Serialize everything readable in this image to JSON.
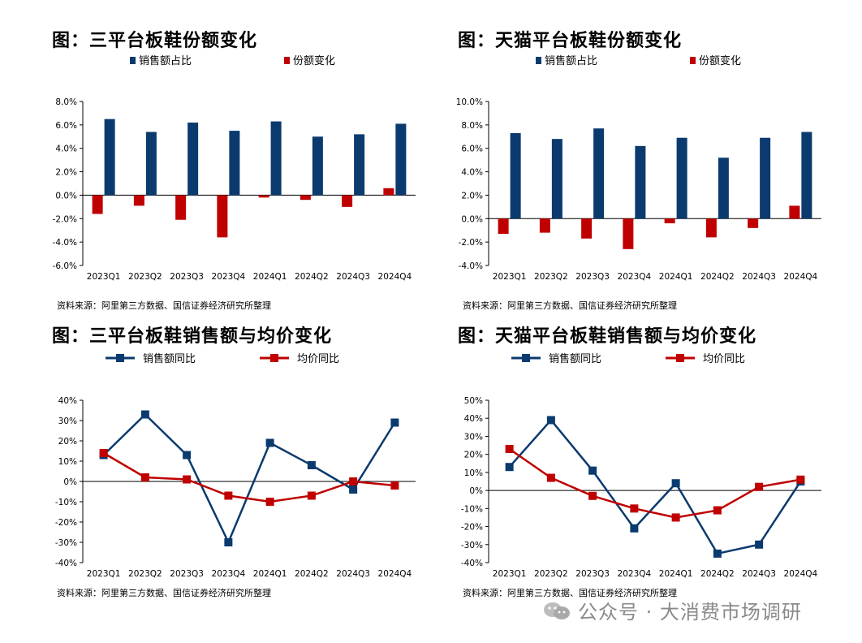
{
  "colors": {
    "navy": "#0B3A6E",
    "red": "#C00000",
    "axis": "#000000"
  },
  "watermark": {
    "text": "公众号 · 大消费市场调研",
    "icon": "wechat-icon"
  },
  "chart_data": [
    {
      "type": "bar",
      "title": "图：三平台板鞋份额变化",
      "source": "资料来源：阿里第三方数据、国信证券经济研究所整理",
      "categories": [
        "2023Q1",
        "2023Q2",
        "2023Q3",
        "2023Q4",
        "2024Q1",
        "2024Q2",
        "2024Q3",
        "2024Q4"
      ],
      "series": [
        {
          "name": "销售额占比",
          "color": "#0B3A6E",
          "values": [
            6.5,
            5.4,
            6.2,
            5.5,
            6.3,
            5.0,
            5.2,
            6.1
          ]
        },
        {
          "name": "份额变化",
          "color": "#C00000",
          "values": [
            -1.6,
            -0.9,
            -2.1,
            -3.6,
            -0.2,
            -0.4,
            -1.0,
            0.6
          ]
        }
      ],
      "yticks": [
        "8.0%",
        "6.0%",
        "4.0%",
        "2.0%",
        "0.0%",
        "-2.0%",
        "-4.0%",
        "-6.0%"
      ],
      "ylim": [
        -6,
        8
      ],
      "ystep": 2
    },
    {
      "type": "bar",
      "title": "图：天猫平台板鞋份额变化",
      "source": "资料来源：阿里第三方数据、国信证券经济研究所整理",
      "categories": [
        "2023Q1",
        "2023Q2",
        "2023Q3",
        "2023Q4",
        "2024Q1",
        "2024Q2",
        "2024Q3",
        "2024Q4"
      ],
      "series": [
        {
          "name": "销售额占比",
          "color": "#0B3A6E",
          "values": [
            7.3,
            6.8,
            7.7,
            6.2,
            6.9,
            5.2,
            6.9,
            7.4
          ]
        },
        {
          "name": "份额变化",
          "color": "#C00000",
          "values": [
            -1.3,
            -1.2,
            -1.7,
            -2.6,
            -0.4,
            -1.6,
            -0.8,
            1.1
          ]
        }
      ],
      "yticks": [
        "10.0%",
        "8.0%",
        "6.0%",
        "4.0%",
        "2.0%",
        "0.0%",
        "-2.0%",
        "-4.0%"
      ],
      "ylim": [
        -4,
        10
      ],
      "ystep": 2
    },
    {
      "type": "line",
      "title": "图：三平台板鞋销售额与均价变化",
      "source": "资料来源：阿里第三方数据、国信证券经济研究所整理",
      "categories": [
        "2023Q1",
        "2023Q2",
        "2023Q3",
        "2023Q4",
        "2024Q1",
        "2024Q2",
        "2024Q3",
        "2024Q4"
      ],
      "series": [
        {
          "name": "销售额同比",
          "color": "#0B3A6E",
          "values": [
            13,
            33,
            13,
            -30,
            19,
            8,
            -4,
            29
          ]
        },
        {
          "name": "均价同比",
          "color": "#C00000",
          "values": [
            14,
            2,
            1,
            -7,
            -10,
            -7,
            0,
            -2
          ]
        }
      ],
      "yticks": [
        "40%",
        "30%",
        "20%",
        "10%",
        "0%",
        "-10%",
        "-20%",
        "-30%",
        "-40%"
      ],
      "ylim": [
        -40,
        40
      ],
      "ystep": 10
    },
    {
      "type": "line",
      "title": "图：天猫平台板鞋销售额与均价变化",
      "source": "资料来源：阿里第三方数据、国信证券经济研究所整理",
      "categories": [
        "2023Q1",
        "2023Q2",
        "2023Q3",
        "2023Q4",
        "2024Q1",
        "2024Q2",
        "2024Q3",
        "2024Q4"
      ],
      "series": [
        {
          "name": "销售额同比",
          "color": "#0B3A6E",
          "values": [
            13,
            39,
            11,
            -21,
            4,
            -35,
            -30,
            5
          ]
        },
        {
          "name": "均价同比",
          "color": "#C00000",
          "values": [
            23,
            7,
            -3,
            -10,
            -15,
            -11,
            2,
            6
          ]
        }
      ],
      "yticks": [
        "50%",
        "40%",
        "30%",
        "20%",
        "10%",
        "0%",
        "-10%",
        "-20%",
        "-30%",
        "-40%"
      ],
      "ylim": [
        -40,
        50
      ],
      "ystep": 10
    }
  ]
}
